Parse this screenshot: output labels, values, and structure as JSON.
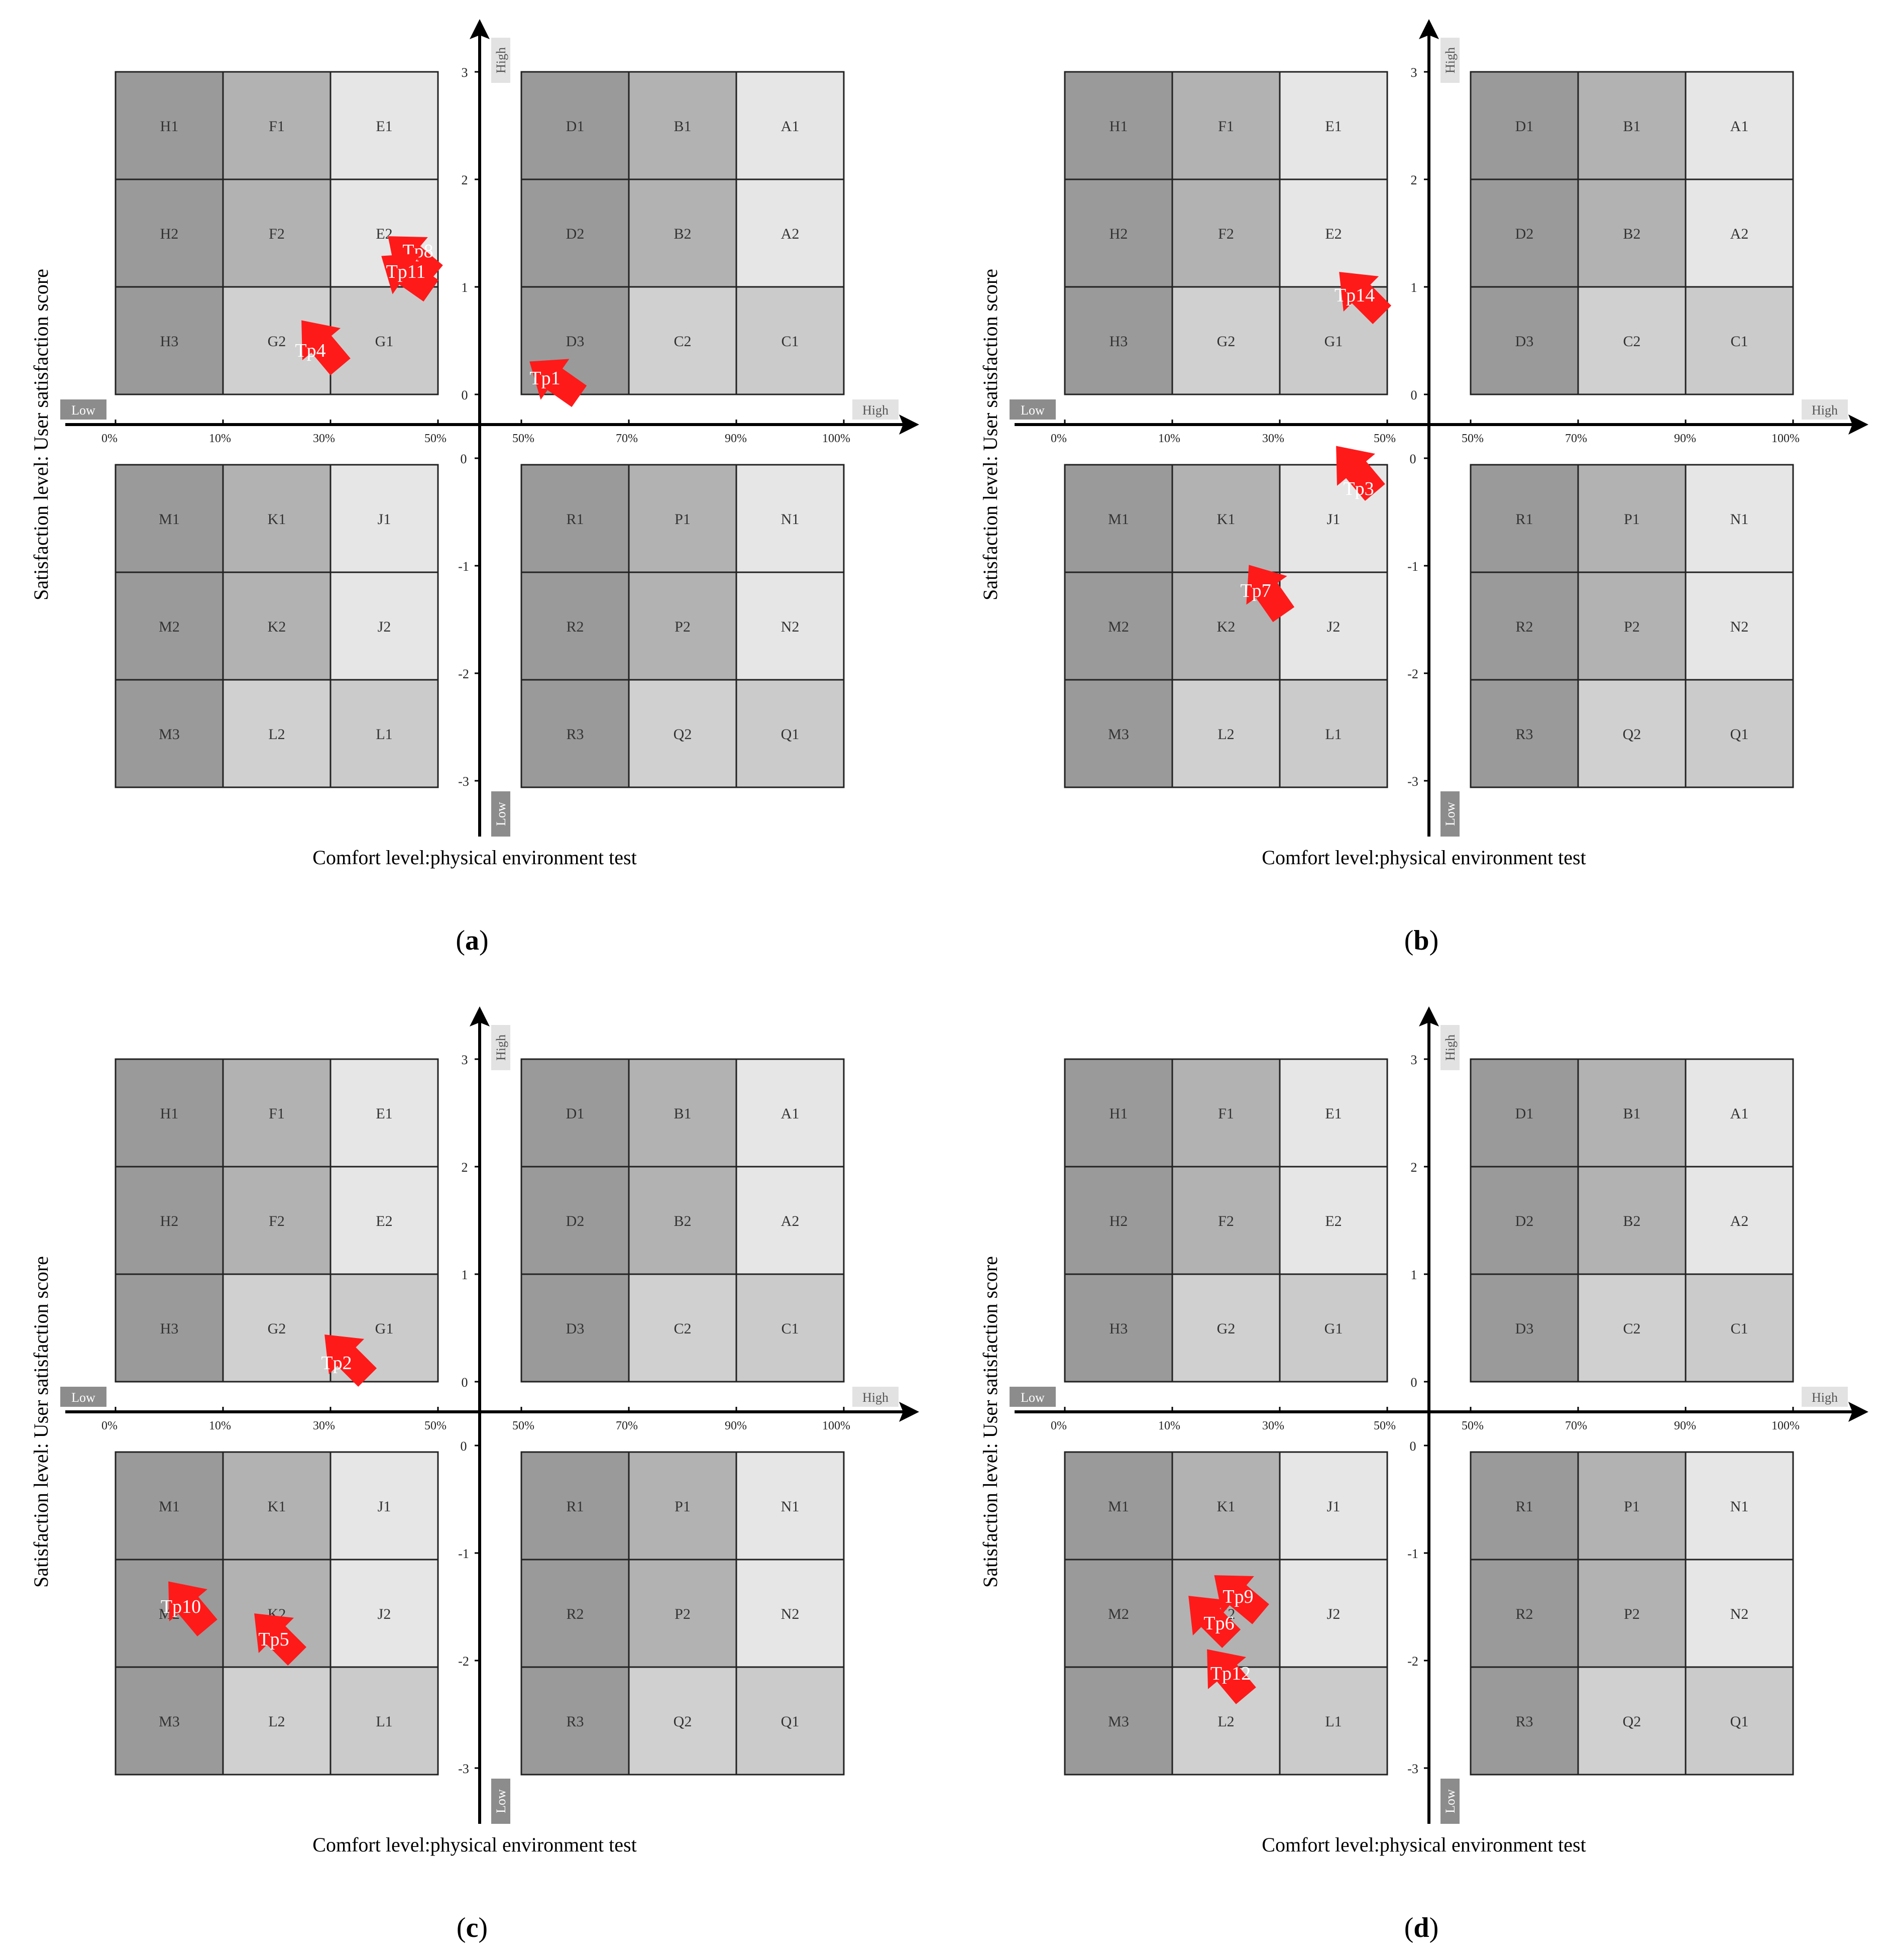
{
  "axis_labels": {
    "x_title": "Comfort level:physical environment test",
    "y_title": "Satisfaction level: User satisfaction score",
    "low": "Low",
    "high": "High"
  },
  "x_ticks_left": [
    "0%",
    "10%",
    "30%",
    "50%"
  ],
  "x_ticks_right": [
    "50%",
    "70%",
    "90%",
    "100%"
  ],
  "y_ticks_upper": [
    "3",
    "2",
    "1",
    "0"
  ],
  "y_ticks_lower": [
    "0",
    "-1",
    "-2",
    "-3"
  ],
  "colors": {
    "dark": "#9a9a9a",
    "medium": "#b2b2b2",
    "light": "#e6e6e6",
    "lightmid": "#d0d0d0",
    "lightmid2": "#cbcbcb",
    "arrow": "#ff1a1a",
    "low_tag": "#8c8c8c",
    "high_tag": "#e2e2e2"
  },
  "grids": {
    "upper_left": [
      [
        "H1",
        "F1",
        "E1"
      ],
      [
        "H2",
        "F2",
        "E2"
      ],
      [
        "H3",
        "G2",
        "G1"
      ]
    ],
    "upper_right": [
      [
        "D1",
        "B1",
        "A1"
      ],
      [
        "D2",
        "B2",
        "A2"
      ],
      [
        "D3",
        "C2",
        "C1"
      ]
    ],
    "lower_left": [
      [
        "M1",
        "K1",
        "J1"
      ],
      [
        "M2",
        "K2",
        "J2"
      ],
      [
        "M3",
        "L2",
        "L1"
      ]
    ],
    "lower_right": [
      [
        "R1",
        "P1",
        "N1"
      ],
      [
        "R2",
        "P2",
        "N2"
      ],
      [
        "R3",
        "Q2",
        "Q1"
      ]
    ]
  },
  "grid_shades": {
    "upper_left": [
      [
        "dark",
        "medium",
        "light"
      ],
      [
        "dark",
        "medium",
        "light"
      ],
      [
        "dark",
        "lightmid",
        "lightmid2"
      ]
    ],
    "upper_right": [
      [
        "dark",
        "medium",
        "light"
      ],
      [
        "dark",
        "medium",
        "light"
      ],
      [
        "dark",
        "lightmid",
        "lightmid2"
      ]
    ],
    "lower_left": [
      [
        "dark",
        "medium",
        "light"
      ],
      [
        "dark",
        "medium",
        "light"
      ],
      [
        "dark",
        "lightmid",
        "lightmid2"
      ]
    ],
    "lower_right": [
      [
        "dark",
        "medium",
        "light"
      ],
      [
        "dark",
        "medium",
        "light"
      ],
      [
        "dark",
        "lightmid",
        "lightmid2"
      ]
    ]
  },
  "panels": [
    {
      "caption": "(a)",
      "markers": [
        {
          "label": "Tp8",
          "cell": "E2",
          "quadrant": "upper_left"
        },
        {
          "label": "Tp11",
          "cell": "E2",
          "quadrant": "upper_left"
        },
        {
          "label": "Tp4",
          "cell": "G2",
          "quadrant": "upper_left"
        },
        {
          "label": "Tp1",
          "cell": "D3",
          "quadrant": "upper_right"
        }
      ]
    },
    {
      "caption": "(b)",
      "markers": [
        {
          "label": "Tp14",
          "cell": "G1",
          "quadrant": "upper_left"
        },
        {
          "label": "Tp3",
          "cell": "J1",
          "quadrant": "lower_left"
        },
        {
          "label": "Tp7",
          "cell": "K2",
          "quadrant": "lower_left"
        }
      ]
    },
    {
      "caption": "(c)",
      "markers": [
        {
          "label": "Tp2",
          "cell": "G1",
          "quadrant": "upper_left"
        },
        {
          "label": "Tp10",
          "cell": "M1",
          "quadrant": "lower_left"
        },
        {
          "label": "Tp5",
          "cell": "K1",
          "quadrant": "lower_left"
        }
      ]
    },
    {
      "caption": "(d)",
      "markers": [
        {
          "label": "Tp9",
          "cell": "K1",
          "quadrant": "lower_left"
        },
        {
          "label": "Tp6",
          "cell": "K1",
          "quadrant": "lower_left"
        },
        {
          "label": "Tp12",
          "cell": "K2",
          "quadrant": "lower_left"
        }
      ]
    }
  ]
}
